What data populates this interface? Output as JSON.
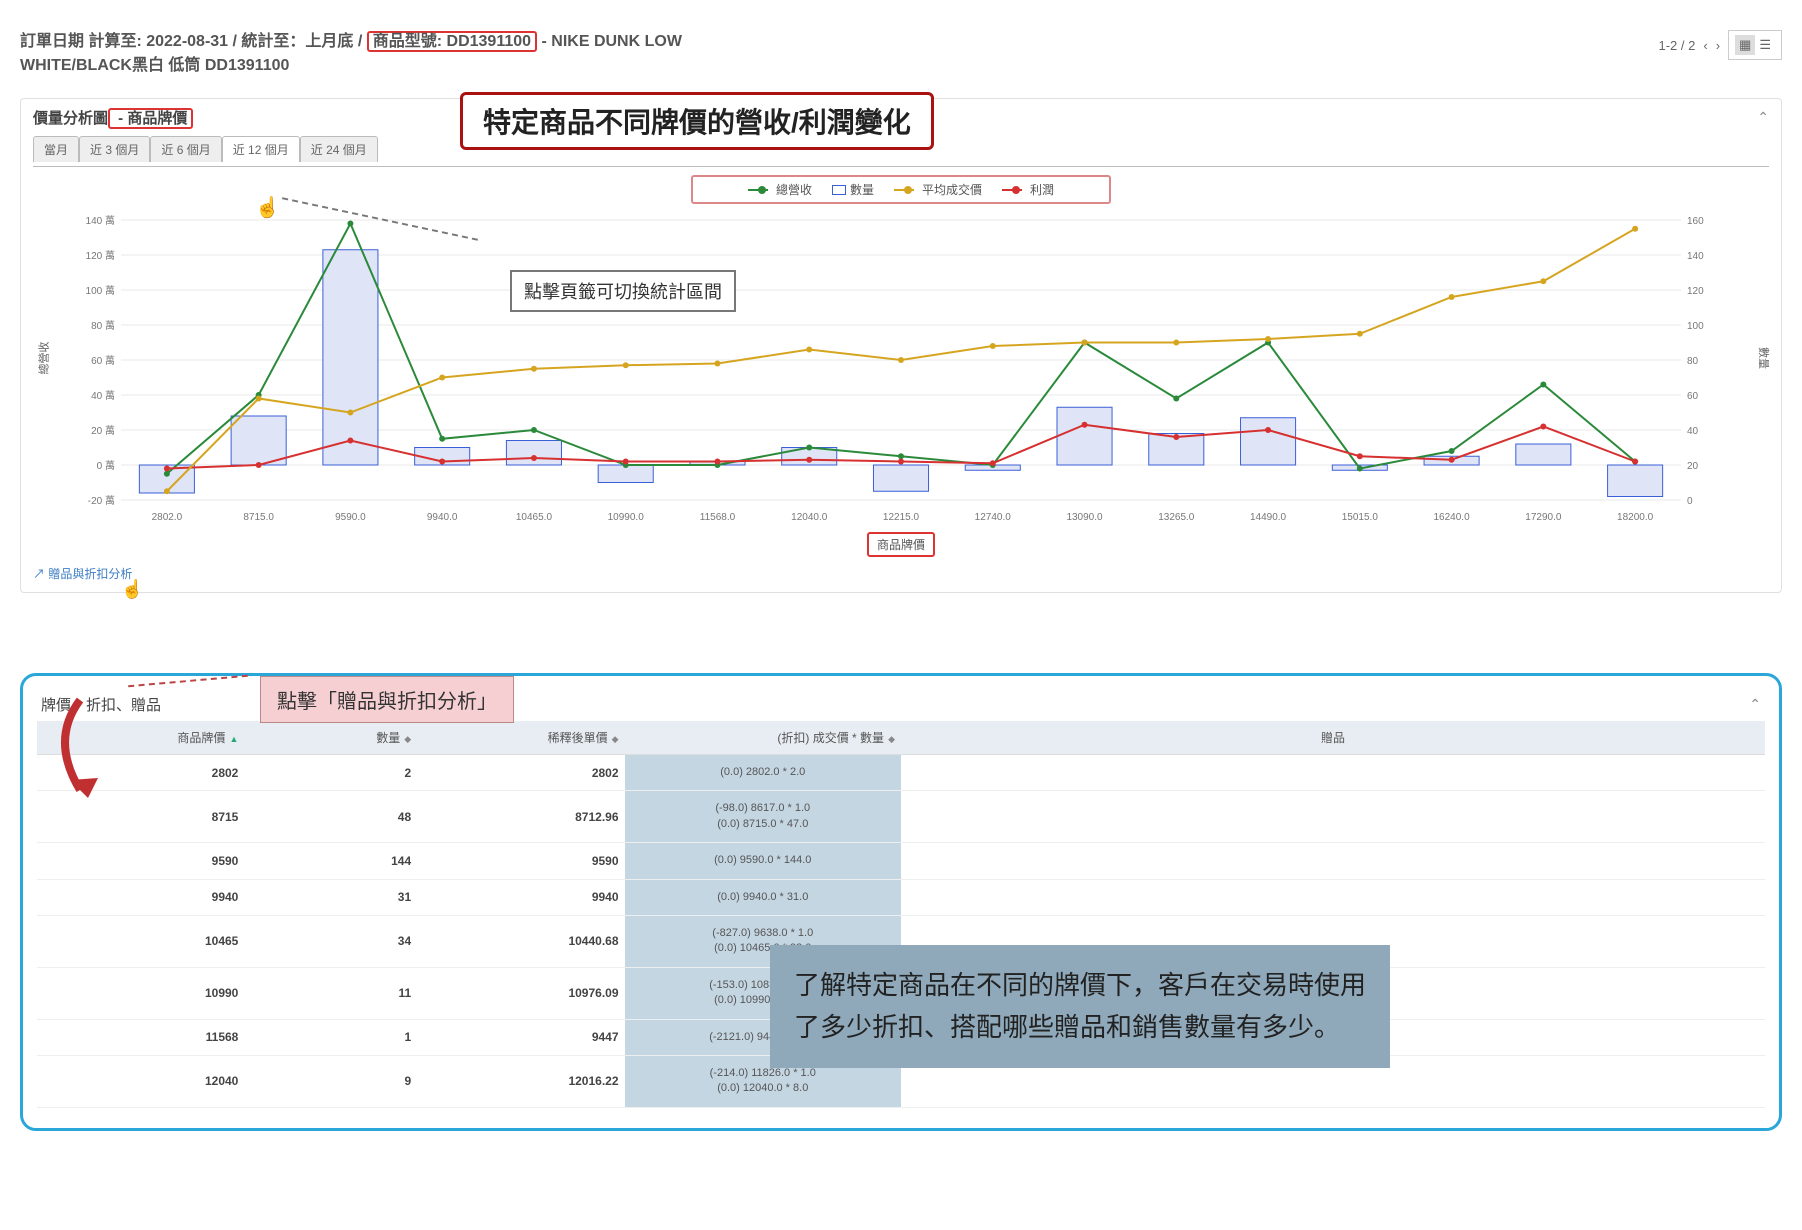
{
  "header": {
    "line1_prefix": "訂單日期 計算至: 2022-08-31 / 統計至：上月底 / ",
    "model_label": "商品型號: DD1391100",
    "line1_suffix": " - NIKE DUNK LOW",
    "line2": "WHITE/BLACK黑白 低筒 DD1391100",
    "pager_text": "1-2 / 2"
  },
  "title_callout": "特定商品不同牌價的營收/利潤變化",
  "chart_panel": {
    "title_prefix": "價量分析圖",
    "title_highlight": " - 商品牌價",
    "tabs": [
      "當月",
      "近 3 個月",
      "近 6 個月",
      "近 12 個月",
      "近 24 個月"
    ],
    "active_tab": 3,
    "tab_note": "點擊頁籤可切換統計區間",
    "legend": [
      {
        "label": "總營收",
        "type": "line",
        "color": "#2a8a3a"
      },
      {
        "label": "數量",
        "type": "box",
        "color": "#3b5fd6"
      },
      {
        "label": "平均成交價",
        "type": "line",
        "color": "#d6a520"
      },
      {
        "label": "利潤",
        "type": "line",
        "color": "#d63030"
      }
    ],
    "y_left_label": "總營收",
    "y_right_label": "數量",
    "x_axis_label": "商品牌價",
    "y_left_ticks": [
      "-20 萬",
      "0 萬",
      "20 萬",
      "40 萬",
      "60 萬",
      "80 萬",
      "100 萬",
      "120 萬",
      "140 萬"
    ],
    "y_right_ticks": [
      "0",
      "20",
      "40",
      "60",
      "80",
      "100",
      "120",
      "140",
      "160"
    ],
    "link_text": "贈品與折扣分析",
    "link_note": "點擊「贈品與折扣分析」",
    "categories": [
      "2802.0",
      "8715.0",
      "9590.0",
      "9940.0",
      "10465.0",
      "10990.0",
      "11568.0",
      "12040.0",
      "12215.0",
      "12740.0",
      "13090.0",
      "13265.0",
      "14490.0",
      "15015.0",
      "16240.0",
      "17290.0",
      "18200.0"
    ],
    "bars": [
      -16,
      28,
      123,
      10,
      14,
      -10,
      2,
      10,
      -15,
      -3,
      33,
      18,
      27,
      -3,
      5,
      12,
      -18
    ],
    "revenue": [
      -5,
      40,
      138,
      15,
      20,
      0,
      0,
      10,
      5,
      0,
      70,
      38,
      70,
      -2,
      8,
      46,
      2
    ],
    "profit": [
      -2,
      0,
      14,
      2,
      4,
      2,
      2,
      3,
      2,
      1,
      23,
      16,
      20,
      5,
      3,
      22,
      2
    ],
    "avg_price": [
      5,
      58,
      50,
      70,
      75,
      77,
      78,
      86,
      80,
      88,
      90,
      90,
      92,
      95,
      116,
      125,
      155
    ],
    "colors": {
      "bar_fill": "#dfe5f7",
      "bar_stroke": "#3b5fd6",
      "revenue": "#2a8a3a",
      "profit": "#d63030",
      "avg": "#d6a520",
      "grid": "#e8e8e8",
      "axis_text": "#777"
    }
  },
  "table_panel": {
    "title": "牌價、折扣、贈品",
    "columns": [
      "商品牌價",
      "數量",
      "稀釋後單價",
      "(折扣) 成交價 * 數量",
      "贈品"
    ],
    "rows": [
      {
        "price": "2802",
        "qty": "2",
        "diluted": "2802",
        "discount": [
          "(0.0) 2802.0 * 2.0"
        ]
      },
      {
        "price": "8715",
        "qty": "48",
        "diluted": "8712.96",
        "discount": [
          "(-98.0) 8617.0 *  1.0",
          "(0.0) 8715.0 * 47.0"
        ]
      },
      {
        "price": "9590",
        "qty": "144",
        "diluted": "9590",
        "discount": [
          "(0.0) 9590.0 * 144.0"
        ]
      },
      {
        "price": "9940",
        "qty": "31",
        "diluted": "9940",
        "discount": [
          "(0.0) 9940.0 * 31.0"
        ]
      },
      {
        "price": "10465",
        "qty": "34",
        "diluted": "10440.68",
        "discount": [
          "(-827.0) 9638.0 *  1.0",
          "(0.0) 10465.0 * 33.0"
        ]
      },
      {
        "price": "10990",
        "qty": "11",
        "diluted": "10976.09",
        "discount": [
          "(-153.0) 10837.0 *  1.0",
          "(0.0) 10990.0 * 10.0"
        ]
      },
      {
        "price": "11568",
        "qty": "1",
        "diluted": "9447",
        "discount": [
          "(-2121.0) 9447.0 *  1.0"
        ]
      },
      {
        "price": "12040",
        "qty": "9",
        "diluted": "12016.22",
        "discount": [
          "(-214.0) 11826.0 * 1.0",
          "(0.0) 12040.0 * 8.0"
        ]
      }
    ]
  },
  "big_note": "了解特定商品在不同的牌價下，客戶在交易時使用了多少折扣、搭配哪些贈品和銷售數量有多少。"
}
